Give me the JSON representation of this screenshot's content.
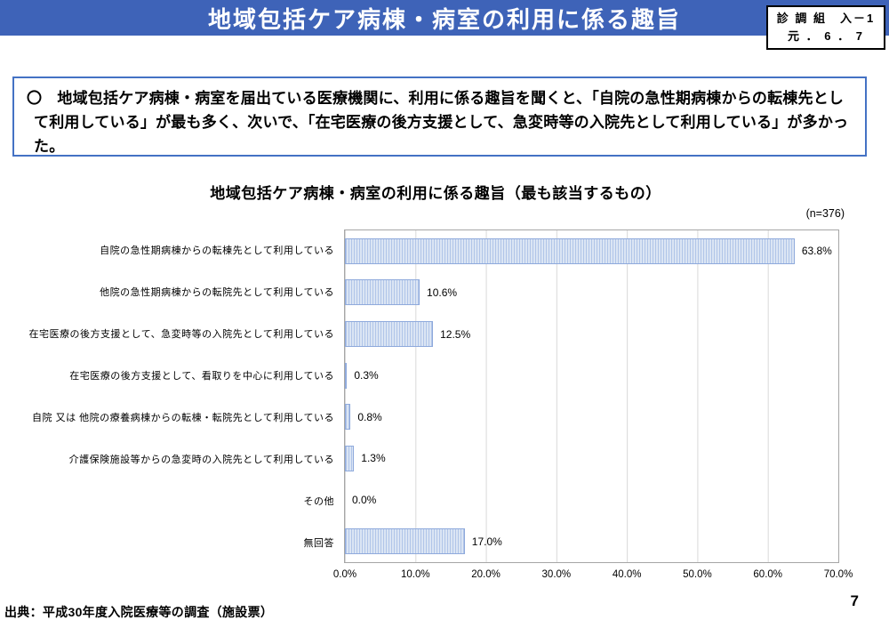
{
  "header": {
    "title": "地域包括ケア病棟・病室の利用に係る趣旨",
    "ref_box": {
      "line1": "診 調 組　入－1",
      "line2": "元 ． 6 ． 7"
    }
  },
  "summary": {
    "text": "〇　地域包括ケア病棟・病室を届出ている医療機関に、利用に係る趣旨を聞くと、「自院の急性期病棟からの転棟先として利用している」が最も多く、次いで、「在宅医療の後方支援として、急変時等の入院先として利用している」が多かった。"
  },
  "chart_data": {
    "type": "bar",
    "orientation": "horizontal",
    "title": "地域包括ケア病棟・病室の利用に係る趣旨（最も該当するもの）",
    "sample_size_label": "(n=376)",
    "categories": [
      "自院の急性期病棟からの転棟先として利用している",
      "他院の急性期病棟からの転院先として利用している",
      "在宅医療の後方支援として、急変時等の入院先として利用している",
      "在宅医療の後方支援として、看取りを中心に利用している",
      "自院 又は 他院の療養病棟からの転棟・転院先として利用している",
      "介護保険施設等からの急変時の入院先として利用している",
      "その他",
      "無回答"
    ],
    "values": [
      63.8,
      10.6,
      12.5,
      0.3,
      0.8,
      1.3,
      0.0,
      17.0
    ],
    "value_labels": [
      "63.8%",
      "10.6%",
      "12.5%",
      "0.3%",
      "0.8%",
      "1.3%",
      "0.0%",
      "17.0%"
    ],
    "xlabel": "",
    "ylabel": "",
    "xlim": [
      0,
      70
    ],
    "x_ticks": [
      "0.0%",
      "10.0%",
      "20.0%",
      "30.0%",
      "40.0%",
      "50.0%",
      "60.0%",
      "70.0%"
    ],
    "grid": true,
    "legend": false,
    "colors": {
      "bar_fill": "#dbe5f4",
      "bar_stripe": "#b0c5e8",
      "bar_border": "#8faadc",
      "plot_border": "#a6a6a6",
      "gridline": "#d9d9d9",
      "header_bar": "#3e63b8",
      "summary_border": "#4472c4"
    }
  },
  "footer": {
    "source": "出典：平成30年度入院医療等の調査（施設票）",
    "page_number": "7"
  }
}
